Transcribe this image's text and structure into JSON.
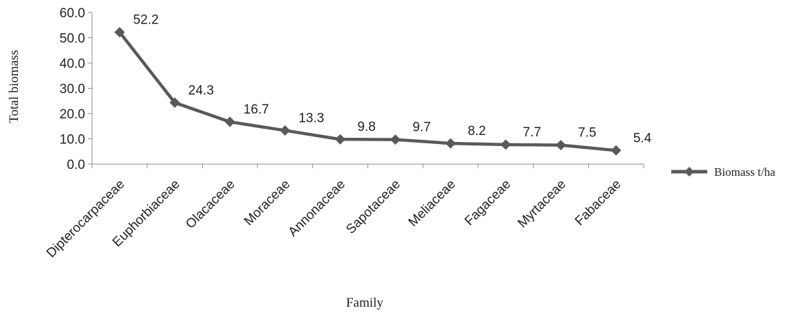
{
  "chart_data": {
    "type": "line",
    "title": "",
    "xlabel": "Family",
    "ylabel": "Total biomass",
    "categories": [
      "Dipterocarpaceae",
      "Euphorbiaceae",
      "Olacaceae",
      "Moraceae",
      "Annonaceae",
      "Sapotaceae",
      "Meliaceae",
      "Fagaceae",
      "Myrtaceae",
      "Fabaceae"
    ],
    "series": [
      {
        "name": "Biomass t/ha",
        "values": [
          52.2,
          24.3,
          16.7,
          13.3,
          9.8,
          9.7,
          8.2,
          7.7,
          7.5,
          5.4
        ],
        "data_labels": [
          "52.2",
          "24.3",
          "16.7",
          "13.3",
          "9.8",
          "9.7",
          "8.2",
          "7.7",
          "7.5",
          "5.4"
        ],
        "color": "#595959",
        "marker": "diamond"
      }
    ],
    "ylim": [
      0,
      60
    ],
    "yticks": [
      0,
      10,
      20,
      30,
      40,
      50,
      60
    ],
    "ytick_labels": [
      "0.0",
      "10.0",
      "20.0",
      "30.0",
      "40.0",
      "50.0",
      "60.0"
    ],
    "grid": false,
    "legend_position": "right"
  }
}
